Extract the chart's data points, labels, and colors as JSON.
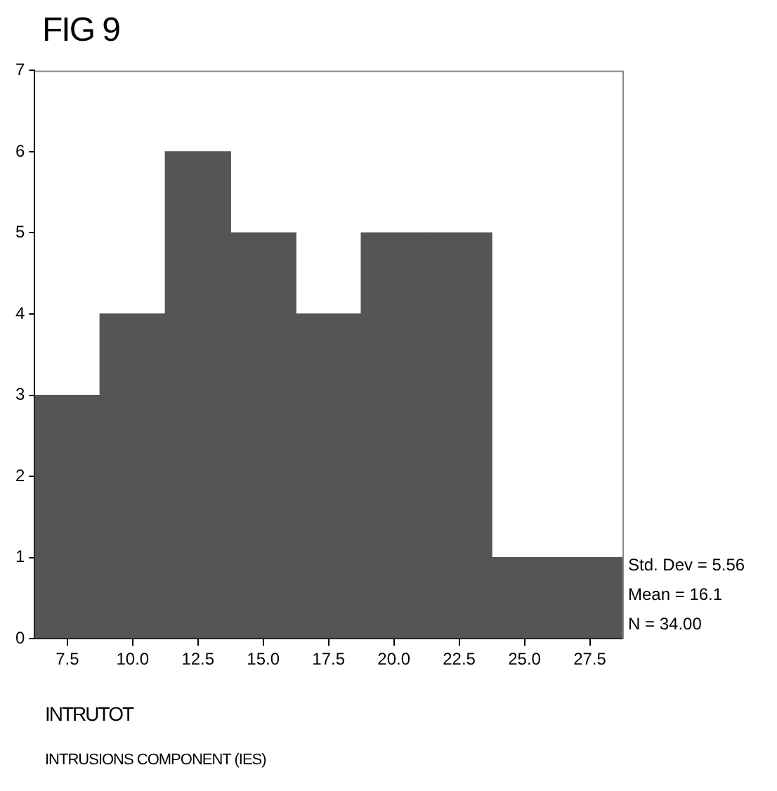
{
  "chart_data": {
    "type": "histogram",
    "title": "FIG 9",
    "xlabel": "INTRUTOT",
    "bins": [
      6.25,
      8.75,
      11.25,
      13.75,
      16.25,
      18.75,
      21.25,
      23.75,
      26.25,
      28.75
    ],
    "values": [
      3,
      4,
      6,
      5,
      4,
      5,
      5,
      1,
      1
    ],
    "color": "#555555",
    "xlim": [
      6.25,
      28.75
    ],
    "xticks": [
      7.5,
      {
        "value": 10,
        "label": "10.0"
      },
      12.5,
      {
        "value": 15,
        "label": "15.0"
      },
      17.5,
      {
        "value": 20,
        "label": "20.0"
      },
      22.5,
      {
        "value": 25,
        "label": "25.0"
      },
      27.5
    ],
    "ylim": [
      0,
      7
    ],
    "yticks": [
      0,
      1,
      2,
      3,
      4,
      5,
      6,
      7
    ],
    "grid": false,
    "legend": false,
    "annotations": [
      "Std. Dev = 5.56",
      "Mean = 16.1",
      "N = 34.00",
      "INTRUSIONS COMPONENT (IES)"
    ]
  }
}
